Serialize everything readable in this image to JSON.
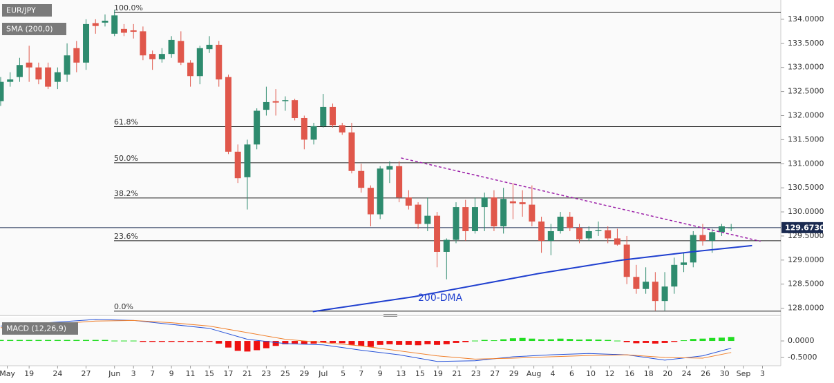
{
  "chart_data": [
    {
      "type": "candlestick",
      "title": "EUR/JPY",
      "indicator": "SMA (200,0)",
      "xlim": [
        -0.07,
        82.23
      ],
      "ylim": [
        127.88,
        134.4
      ],
      "yticks": [
        {
          "value": 134,
          "label": "134.0000"
        },
        {
          "value": 133.5,
          "label": "133.5000"
        },
        {
          "value": 133,
          "label": "133.0000"
        },
        {
          "value": 132.5,
          "label": "132.5000"
        },
        {
          "value": 132,
          "label": "132.0000"
        },
        {
          "value": 131.5,
          "label": "131.5000"
        },
        {
          "value": 131,
          "label": "131.0000"
        },
        {
          "value": 130.5,
          "label": "130.5000"
        },
        {
          "value": 130,
          "label": "130.0000"
        },
        {
          "value": 129.5,
          "label": "129.5000"
        },
        {
          "value": 129,
          "label": "129.0000"
        },
        {
          "value": 128.5,
          "label": "128.5000"
        },
        {
          "value": 128,
          "label": "128.0000"
        }
      ],
      "xticks": [
        {
          "value": 0.7,
          "label": "May"
        },
        {
          "value": 3,
          "label": "19"
        },
        {
          "value": 6,
          "label": "24"
        },
        {
          "value": 9,
          "label": "27"
        },
        {
          "value": 12,
          "label": "Jun"
        },
        {
          "value": 14,
          "label": "3"
        },
        {
          "value": 16,
          "label": "7"
        },
        {
          "value": 18,
          "label": "9"
        },
        {
          "value": 20,
          "label": "11"
        },
        {
          "value": 22,
          "label": "15"
        },
        {
          "value": 24,
          "label": "17"
        },
        {
          "value": 26,
          "label": "21"
        },
        {
          "value": 28,
          "label": "23"
        },
        {
          "value": 30,
          "label": "25"
        },
        {
          "value": 32,
          "label": "29"
        },
        {
          "value": 34,
          "label": "Jul"
        },
        {
          "value": 36.1,
          "label": "5"
        },
        {
          "value": 38,
          "label": "7"
        },
        {
          "value": 40,
          "label": "9"
        },
        {
          "value": 42.2,
          "label": "13"
        },
        {
          "value": 44.2,
          "label": "15"
        },
        {
          "value": 46.1,
          "label": "19"
        },
        {
          "value": 48.1,
          "label": "21"
        },
        {
          "value": 50.1,
          "label": "23"
        },
        {
          "value": 52.1,
          "label": "27"
        },
        {
          "value": 54.1,
          "label": "29"
        },
        {
          "value": 56.2,
          "label": "Aug"
        },
        {
          "value": 58.2,
          "label": "4"
        },
        {
          "value": 60.2,
          "label": "6"
        },
        {
          "value": 62.2,
          "label": "10"
        },
        {
          "value": 64.2,
          "label": "12"
        },
        {
          "value": 66.3,
          "label": "16"
        },
        {
          "value": 68.3,
          "label": "18"
        },
        {
          "value": 70.3,
          "label": "20"
        },
        {
          "value": 72.3,
          "label": "24"
        },
        {
          "value": 74.3,
          "label": "26"
        },
        {
          "value": 76.3,
          "label": "30"
        },
        {
          "value": 78.3,
          "label": "Sep"
        },
        {
          "value": 80.3,
          "label": "3"
        }
      ],
      "up_color": "#2e8b6e",
      "down_color": "#e0574b",
      "open": [
        132.3,
        132.7,
        132.8,
        133.1,
        133.0,
        133.0,
        132.7,
        132.85,
        133.4,
        133.1,
        133.92,
        133.93,
        133.7,
        133.8,
        133.77,
        133.75,
        133.28,
        133.17,
        133.28,
        133.55,
        133.1,
        132.82,
        133.38,
        133.47,
        132.8,
        131.25,
        130.72,
        131.4,
        132.12,
        132.3,
        132.3,
        132.32,
        131.95,
        131.5,
        131.78,
        132.18,
        131.8,
        131.65,
        130.85,
        130.5,
        129.95,
        130.88,
        130.95,
        130.3,
        130.15,
        129.75,
        129.92,
        129.17,
        129.42,
        130.1,
        129.6,
        130.1,
        130.3,
        129.7,
        130.22,
        130.2,
        130.15,
        129.8,
        129.4,
        129.6,
        129.9,
        129.67,
        129.45,
        129.6,
        129.62,
        129.45,
        129.32,
        128.65,
        128.4,
        128.55,
        128.15,
        128.45,
        128.9,
        128.95,
        129.52,
        129.4,
        129.58,
        129.66
      ],
      "high": [
        132.8,
        132.9,
        133.2,
        133.45,
        133.1,
        133.1,
        133.0,
        133.5,
        133.55,
        134.0,
        134.0,
        134.1,
        134.2,
        133.9,
        133.9,
        133.85,
        133.35,
        133.4,
        133.65,
        133.75,
        133.15,
        133.45,
        133.65,
        133.55,
        132.85,
        131.4,
        131.5,
        132.15,
        132.6,
        132.55,
        132.4,
        132.35,
        132.0,
        131.85,
        132.45,
        132.25,
        131.85,
        131.85,
        131.0,
        130.55,
        130.95,
        131.05,
        131.05,
        130.45,
        130.2,
        130.3,
        130.0,
        129.45,
        130.2,
        130.25,
        130.3,
        130.4,
        130.45,
        130.5,
        130.6,
        130.45,
        130.55,
        129.9,
        129.75,
        130.0,
        130.0,
        129.75,
        129.7,
        129.8,
        129.7,
        129.65,
        129.5,
        128.9,
        128.85,
        128.75,
        128.75,
        129.05,
        129.15,
        129.6,
        129.75,
        129.65,
        129.75,
        129.75
      ],
      "low": [
        132.2,
        132.6,
        132.7,
        132.7,
        132.65,
        132.55,
        132.55,
        132.7,
        132.9,
        132.95,
        133.7,
        133.85,
        133.65,
        133.65,
        133.6,
        133.15,
        132.95,
        133.1,
        133.2,
        133.05,
        132.6,
        132.65,
        133.3,
        132.6,
        131.2,
        130.6,
        130.05,
        131.3,
        132.0,
        132.0,
        132.1,
        131.9,
        131.3,
        131.4,
        131.75,
        131.75,
        131.6,
        130.8,
        130.4,
        129.7,
        129.85,
        130.6,
        130.2,
        130.05,
        129.65,
        129.6,
        128.85,
        128.6,
        129.35,
        129.4,
        129.55,
        129.6,
        129.6,
        129.55,
        129.85,
        129.9,
        129.7,
        129.15,
        129.1,
        129.55,
        129.6,
        129.35,
        129.4,
        129.5,
        129.35,
        129.3,
        128.5,
        128.3,
        128.3,
        127.95,
        127.95,
        128.3,
        128.75,
        128.85,
        129.3,
        129.15,
        129.5,
        129.6
      ],
      "close": [
        132.7,
        132.75,
        133.05,
        133.0,
        132.75,
        132.6,
        132.9,
        133.25,
        133.1,
        133.9,
        133.86,
        133.97,
        134.08,
        133.72,
        133.74,
        133.25,
        133.17,
        133.28,
        133.57,
        133.1,
        132.82,
        133.4,
        133.47,
        132.75,
        131.25,
        130.7,
        131.4,
        132.1,
        132.28,
        132.27,
        132.32,
        131.95,
        131.5,
        131.78,
        132.18,
        131.8,
        131.65,
        130.85,
        130.5,
        129.95,
        130.9,
        130.95,
        130.3,
        130.13,
        129.75,
        129.92,
        129.17,
        129.42,
        130.1,
        129.6,
        130.1,
        130.3,
        129.7,
        130.27,
        130.18,
        130.16,
        129.8,
        129.4,
        129.6,
        129.9,
        129.67,
        129.43,
        129.6,
        129.62,
        129.45,
        129.32,
        128.65,
        128.4,
        128.55,
        128.15,
        128.45,
        128.9,
        128.95,
        129.52,
        129.4,
        129.58,
        129.7,
        129.673
      ],
      "fib_levels": [
        {
          "label": "100.0%",
          "value": 134.14
        },
        {
          "label": "61.8%",
          "value": 131.77
        },
        {
          "label": "50.0%",
          "value": 131.02
        },
        {
          "label": "38.2%",
          "value": 130.29
        },
        {
          "label": "23.6%",
          "value": 129.4
        },
        {
          "label": "0.0%",
          "value": 127.94
        }
      ],
      "sma": {
        "name": "200-DMA",
        "color": "#1f3fcf",
        "x": [
          32.9,
          43.6,
          56.7,
          65.5,
          72.8,
          79.2
        ],
        "values": [
          127.93,
          128.24,
          128.72,
          129.0,
          129.17,
          129.3
        ]
      },
      "trendline": {
        "color": "#9b1fa8",
        "x": [
          42.2,
          80.1
        ],
        "values": [
          131.12,
          129.39
        ]
      },
      "last_price": {
        "value": 129.673,
        "label": "129.6730"
      }
    },
    {
      "type": "macd",
      "title": "MACD (12,26,9)",
      "ylim": [
        -0.75,
        0.71
      ],
      "yticks": [
        {
          "value": 0,
          "label": "0.0000"
        },
        {
          "value": -0.5,
          "label": "-0.5000"
        }
      ],
      "up_color": "#22dd22",
      "down_color": "#ee1111",
      "histogram": [
        0.03,
        0.03,
        0.03,
        0.03,
        0.03,
        0.03,
        0.03,
        0.03,
        0.03,
        0.03,
        0.03,
        0.03,
        0.01,
        0.01,
        0.01,
        -0.03,
        -0.03,
        -0.03,
        -0.03,
        -0.03,
        -0.03,
        -0.03,
        -0.03,
        -0.08,
        -0.2,
        -0.3,
        -0.32,
        -0.28,
        -0.22,
        -0.15,
        -0.1,
        -0.08,
        -0.09,
        -0.08,
        -0.05,
        -0.06,
        -0.07,
        -0.12,
        -0.15,
        -0.18,
        -0.12,
        -0.1,
        -0.12,
        -0.12,
        -0.13,
        -0.1,
        -0.12,
        -0.1,
        -0.06,
        -0.04,
        0.01,
        0.03,
        0.02,
        0.05,
        0.08,
        0.09,
        0.07,
        0.05,
        0.05,
        0.07,
        0.06,
        0.04,
        0.05,
        0.04,
        0.03,
        0.01,
        -0.04,
        -0.07,
        -0.06,
        -0.08,
        -0.06,
        -0.03,
        0.02,
        0.06,
        0.07,
        0.09,
        0.1,
        0.12
      ],
      "series": [
        {
          "color": "#2450d8",
          "x": [
            0,
            5,
            10,
            14,
            18,
            22,
            26,
            30,
            34,
            38,
            42,
            46,
            50,
            54,
            58,
            62,
            66,
            70,
            74,
            77
          ],
          "values": [
            0.45,
            0.55,
            0.65,
            0.62,
            0.5,
            0.38,
            0.05,
            -0.08,
            -0.12,
            -0.28,
            -0.42,
            -0.62,
            -0.6,
            -0.48,
            -0.42,
            -0.38,
            -0.42,
            -0.58,
            -0.45,
            -0.22
          ]
        },
        {
          "color": "#f07f2a",
          "x": [
            0,
            5,
            10,
            14,
            18,
            22,
            26,
            30,
            34,
            38,
            42,
            46,
            50,
            54,
            58,
            62,
            66,
            70,
            74,
            77
          ],
          "values": [
            0.4,
            0.5,
            0.6,
            0.62,
            0.55,
            0.45,
            0.25,
            0.05,
            -0.05,
            -0.15,
            -0.3,
            -0.45,
            -0.55,
            -0.52,
            -0.48,
            -0.44,
            -0.42,
            -0.5,
            -0.52,
            -0.35
          ]
        }
      ]
    }
  ]
}
